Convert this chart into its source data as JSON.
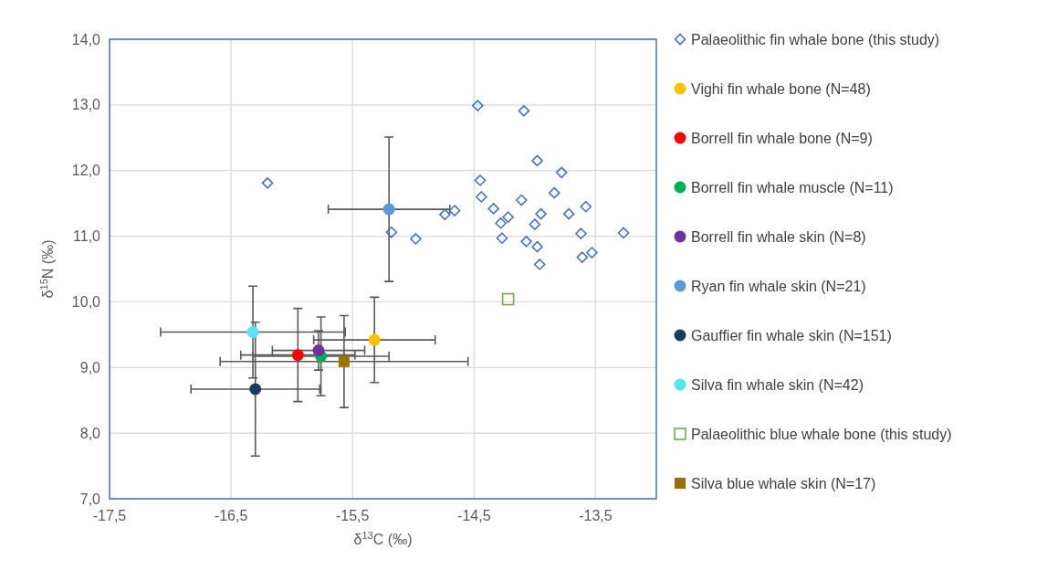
{
  "chart_data": {
    "type": "scatter",
    "xlabel": "δ$^{13}$C (‰)",
    "ylabel": "δ$^{15}$N (‰)",
    "xlim": [
      -17.5,
      -13.0
    ],
    "ylim": [
      7,
      14
    ],
    "xticks": [
      {
        "value": -17.5,
        "label": "-17,5"
      },
      {
        "value": -16.5,
        "label": "-16,5"
      },
      {
        "value": -15.5,
        "label": "-15,5"
      },
      {
        "value": -14.5,
        "label": "-14,5"
      },
      {
        "value": -13.5,
        "label": "-13,5"
      }
    ],
    "yticks": [
      {
        "value": 7,
        "label": "7,0"
      },
      {
        "value": 8,
        "label": "8,0"
      },
      {
        "value": 9,
        "label": "9,0"
      },
      {
        "value": 10,
        "label": "10,0"
      },
      {
        "value": 11,
        "label": "11,0"
      },
      {
        "value": 12,
        "label": "12,0"
      },
      {
        "value": 13,
        "label": "13,0"
      },
      {
        "value": 14,
        "label": "14,0"
      }
    ],
    "grid": true,
    "legend": "right",
    "series": [
      {
        "name": "Palaeolithic fin whale bone (this study)",
        "color": "#4472c4",
        "marker": "diamond",
        "x": [
          -16.2,
          -14.47,
          -14.09,
          -13.98,
          -13.78,
          -14.45,
          -14.44,
          -13.84,
          -14.11,
          -14.34,
          -13.58,
          -13.95,
          -13.72,
          -14.22,
          -14.28,
          -14.0,
          -14.66,
          -14.74,
          -13.62,
          -13.27,
          -14.27,
          -14.07,
          -13.98,
          -13.53,
          -13.61,
          -13.96,
          -15.18,
          -14.98
        ],
        "values": [
          11.81,
          12.99,
          12.91,
          12.15,
          11.97,
          11.85,
          11.6,
          11.66,
          11.55,
          11.42,
          11.45,
          11.34,
          11.34,
          11.29,
          11.2,
          11.18,
          11.39,
          11.33,
          11.04,
          11.05,
          10.97,
          10.92,
          10.84,
          10.75,
          10.68,
          10.57,
          11.06,
          10.96
        ]
      },
      {
        "name": "Vighi fin whale bone (N=48)",
        "color": "#ffc000",
        "marker": "circle",
        "x": [
          -15.32
        ],
        "values": [
          9.42
        ],
        "errors": [
          0.65
        ],
        "xerrors": [
          0.5
        ]
      },
      {
        "name": "Borrell fin whale bone (N=9)",
        "color": "#ff0000",
        "marker": "circle",
        "x": [
          -15.95
        ],
        "values": [
          9.19
        ],
        "errors": [
          0.71
        ],
        "xerrors": [
          0.47
        ]
      },
      {
        "name": "Borrell fin whale muscle (N=11)",
        "color": "#00b050",
        "marker": "circle",
        "x": [
          -15.76
        ],
        "values": [
          9.17
        ],
        "errors": [
          0.6
        ],
        "xerrors": [
          0.56
        ]
      },
      {
        "name": "Borrell fin whale skin (N=8)",
        "color": "#7030a0",
        "marker": "circle",
        "x": [
          -15.78
        ],
        "values": [
          9.26
        ],
        "errors": [
          0.3
        ],
        "xerrors": [
          0.38
        ]
      },
      {
        "name": "Ryan fin whale skin (N=21)",
        "color": "#5b9bd5",
        "marker": "circle",
        "x": [
          -15.2
        ],
        "values": [
          11.41
        ],
        "errors": [
          1.1
        ],
        "xerrors": [
          0.5
        ]
      },
      {
        "name": "Gauffier fin whale skin (N=151)",
        "color": "#203864",
        "marker": "circle",
        "x": [
          -16.3
        ],
        "values": [
          8.67
        ],
        "errors": [
          1.02
        ],
        "xerrors": [
          0.53
        ]
      },
      {
        "name": "Silva fin whale skin (N=42)",
        "color": "#55e6f5",
        "marker": "circle",
        "x": [
          -16.32
        ],
        "values": [
          9.54
        ],
        "errors": [
          0.7
        ],
        "xerrors": [
          0.76
        ]
      },
      {
        "name": "Palaeolithic blue whale bone (this study)",
        "color": "#70ad47",
        "marker": "square",
        "x": [
          -14.22
        ],
        "values": [
          10.04
        ]
      },
      {
        "name": "Silva blue whale skin (N=17)",
        "color": "#997300",
        "marker": "square",
        "x": [
          -15.57
        ],
        "values": [
          9.09
        ],
        "errors": [
          0.7
        ],
        "xerrors": [
          1.02
        ]
      }
    ]
  }
}
